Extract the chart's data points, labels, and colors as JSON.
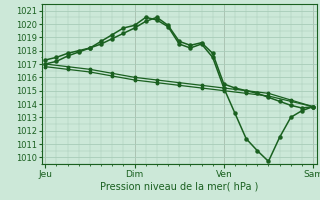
{
  "title": "Pression niveau de la mer( hPa )",
  "bg_color": "#cce8d8",
  "grid_color": "#a8ccb8",
  "line_color": "#1a6020",
  "ylim": [
    1009.5,
    1021.5
  ],
  "yticks": [
    1010,
    1011,
    1012,
    1013,
    1014,
    1015,
    1016,
    1017,
    1018,
    1019,
    1020,
    1021
  ],
  "xtick_positions": [
    0,
    48,
    96,
    144
  ],
  "xtick_labels": [
    "Jeu",
    "Dim",
    "Ven",
    "Sam"
  ],
  "line1_x": [
    0,
    6,
    12,
    18,
    24,
    30,
    36,
    42,
    48,
    54,
    60,
    66,
    72,
    78,
    84,
    90,
    96,
    102,
    108,
    114,
    120,
    126,
    132,
    138,
    144
  ],
  "line1_y": [
    1017.0,
    1017.2,
    1017.6,
    1017.9,
    1018.2,
    1018.7,
    1019.2,
    1019.7,
    1019.9,
    1020.5,
    1020.3,
    1019.8,
    1018.5,
    1018.2,
    1018.5,
    1017.5,
    1015.2,
    1013.3,
    1011.4,
    1010.5,
    1009.7,
    1011.5,
    1013.0,
    1013.5,
    1013.8
  ],
  "line2_x": [
    0,
    6,
    12,
    18,
    24,
    30,
    36,
    42,
    48,
    54,
    60,
    66,
    72,
    78,
    84,
    90,
    96,
    102,
    108,
    114,
    120,
    126,
    132,
    138,
    144
  ],
  "line2_y": [
    1017.3,
    1017.5,
    1017.8,
    1018.0,
    1018.2,
    1018.5,
    1018.9,
    1019.3,
    1019.7,
    1020.2,
    1020.5,
    1019.9,
    1018.7,
    1018.4,
    1018.6,
    1017.8,
    1015.5,
    1015.2,
    1015.0,
    1014.8,
    1014.5,
    1014.2,
    1013.9,
    1013.7,
    1013.8
  ],
  "line3_x": [
    0,
    12,
    24,
    36,
    48,
    60,
    72,
    84,
    96,
    108,
    120,
    132,
    144
  ],
  "line3_y": [
    1017.0,
    1016.8,
    1016.6,
    1016.3,
    1016.0,
    1015.8,
    1015.6,
    1015.4,
    1015.2,
    1015.0,
    1014.8,
    1014.3,
    1013.8
  ],
  "line4_x": [
    0,
    12,
    24,
    36,
    48,
    60,
    72,
    84,
    96,
    108,
    120,
    132,
    144
  ],
  "line4_y": [
    1016.8,
    1016.6,
    1016.4,
    1016.1,
    1015.8,
    1015.6,
    1015.4,
    1015.2,
    1015.0,
    1014.8,
    1014.6,
    1014.2,
    1013.8
  ],
  "vline_color": "#c09090",
  "vline_positions": [
    0,
    48,
    96,
    144
  ]
}
